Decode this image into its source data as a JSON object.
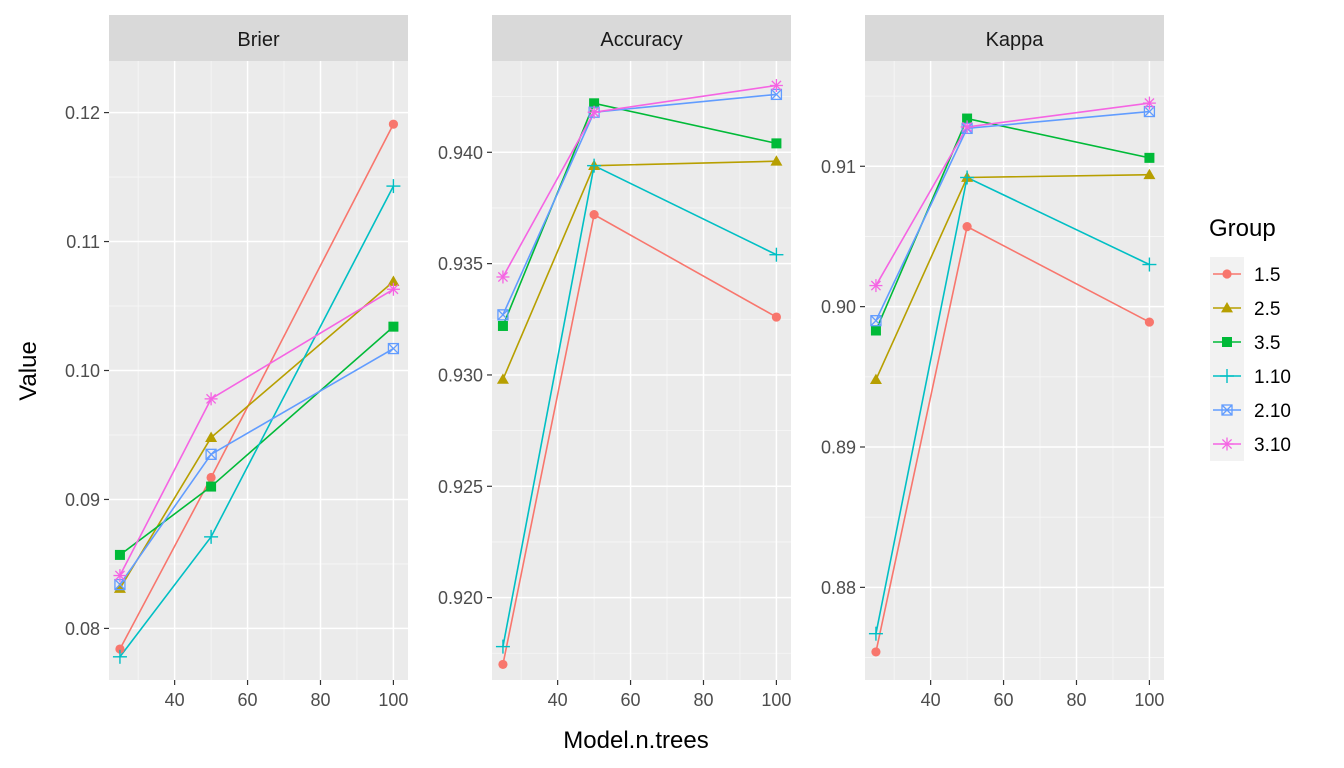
{
  "chart_data": {
    "type": "line",
    "facet_by": "metric",
    "xlabel": "Model.n.trees",
    "ylabel": "Value",
    "x": [
      25,
      50,
      100
    ],
    "x_ticks": [
      40,
      60,
      80,
      100
    ],
    "legend": {
      "title": "Group",
      "placement": "right",
      "entries": [
        "1.5",
        "2.5",
        "3.5",
        "1.10",
        "2.10",
        "3.10"
      ]
    },
    "groups": [
      {
        "name": "1.5",
        "color": "#F8766D",
        "shape": "circle"
      },
      {
        "name": "2.5",
        "color": "#B79F00",
        "shape": "triangle"
      },
      {
        "name": "3.5",
        "color": "#00BA38",
        "shape": "square"
      },
      {
        "name": "1.10",
        "color": "#00BFC4",
        "shape": "plus"
      },
      {
        "name": "2.10",
        "color": "#619CFF",
        "shape": "square-x"
      },
      {
        "name": "3.10",
        "color": "#F564E3",
        "shape": "star"
      }
    ],
    "panels": [
      {
        "title": "Brier",
        "xlim": [
          22,
          104
        ],
        "ylim": [
          0.076,
          0.124
        ],
        "y_ticks": [
          0.08,
          0.09,
          0.1,
          0.11,
          0.12
        ],
        "y_tick_labels": [
          "0.08",
          "0.09",
          "0.10",
          "0.11",
          "0.12"
        ],
        "series": [
          {
            "name": "1.5",
            "values": [
              0.0784,
              0.0917,
              0.1191
            ]
          },
          {
            "name": "2.5",
            "values": [
              0.0831,
              0.0948,
              0.1069
            ]
          },
          {
            "name": "3.5",
            "values": [
              0.0857,
              0.091,
              0.1034
            ]
          },
          {
            "name": "1.10",
            "values": [
              0.0778,
              0.0871,
              0.1143
            ]
          },
          {
            "name": "2.10",
            "values": [
              0.0834,
              0.0935,
              0.1017
            ]
          },
          {
            "name": "3.10",
            "values": [
              0.0841,
              0.0978,
              0.1063
            ]
          }
        ]
      },
      {
        "title": "Accuracy",
        "xlim": [
          22,
          104
        ],
        "ylim": [
          0.9163,
          0.9441
        ],
        "y_ticks": [
          0.92,
          0.925,
          0.93,
          0.935,
          0.94
        ],
        "y_tick_labels": [
          "0.920",
          "0.925",
          "0.930",
          "0.935",
          "0.940"
        ],
        "series": [
          {
            "name": "1.5",
            "values": [
              0.917,
              0.9372,
              0.9326
            ]
          },
          {
            "name": "2.5",
            "values": [
              0.9298,
              0.9394,
              0.9396
            ]
          },
          {
            "name": "3.5",
            "values": [
              0.9322,
              0.9422,
              0.9404
            ]
          },
          {
            "name": "1.10",
            "values": [
              0.9178,
              0.9394,
              0.9354
            ]
          },
          {
            "name": "2.10",
            "values": [
              0.9327,
              0.9418,
              0.9426
            ]
          },
          {
            "name": "3.10",
            "values": [
              0.9344,
              0.9418,
              0.943
            ]
          }
        ]
      },
      {
        "title": "Kappa",
        "xlim": [
          22,
          104
        ],
        "ylim": [
          0.8734,
          0.9175
        ],
        "y_ticks": [
          0.88,
          0.89,
          0.9,
          0.91
        ],
        "y_tick_labels": [
          "0.88",
          "0.89",
          "0.90",
          "0.91"
        ],
        "series": [
          {
            "name": "1.5",
            "values": [
              0.8754,
              0.9057,
              0.8989
            ]
          },
          {
            "name": "2.5",
            "values": [
              0.8948,
              0.9092,
              0.9094
            ]
          },
          {
            "name": "3.5",
            "values": [
              0.8983,
              0.9134,
              0.9106
            ]
          },
          {
            "name": "1.10",
            "values": [
              0.8767,
              0.9092,
              0.903
            ]
          },
          {
            "name": "2.10",
            "values": [
              0.899,
              0.9127,
              0.9139
            ]
          },
          {
            "name": "3.10",
            "values": [
              0.9015,
              0.9128,
              0.9145
            ]
          }
        ]
      }
    ]
  }
}
